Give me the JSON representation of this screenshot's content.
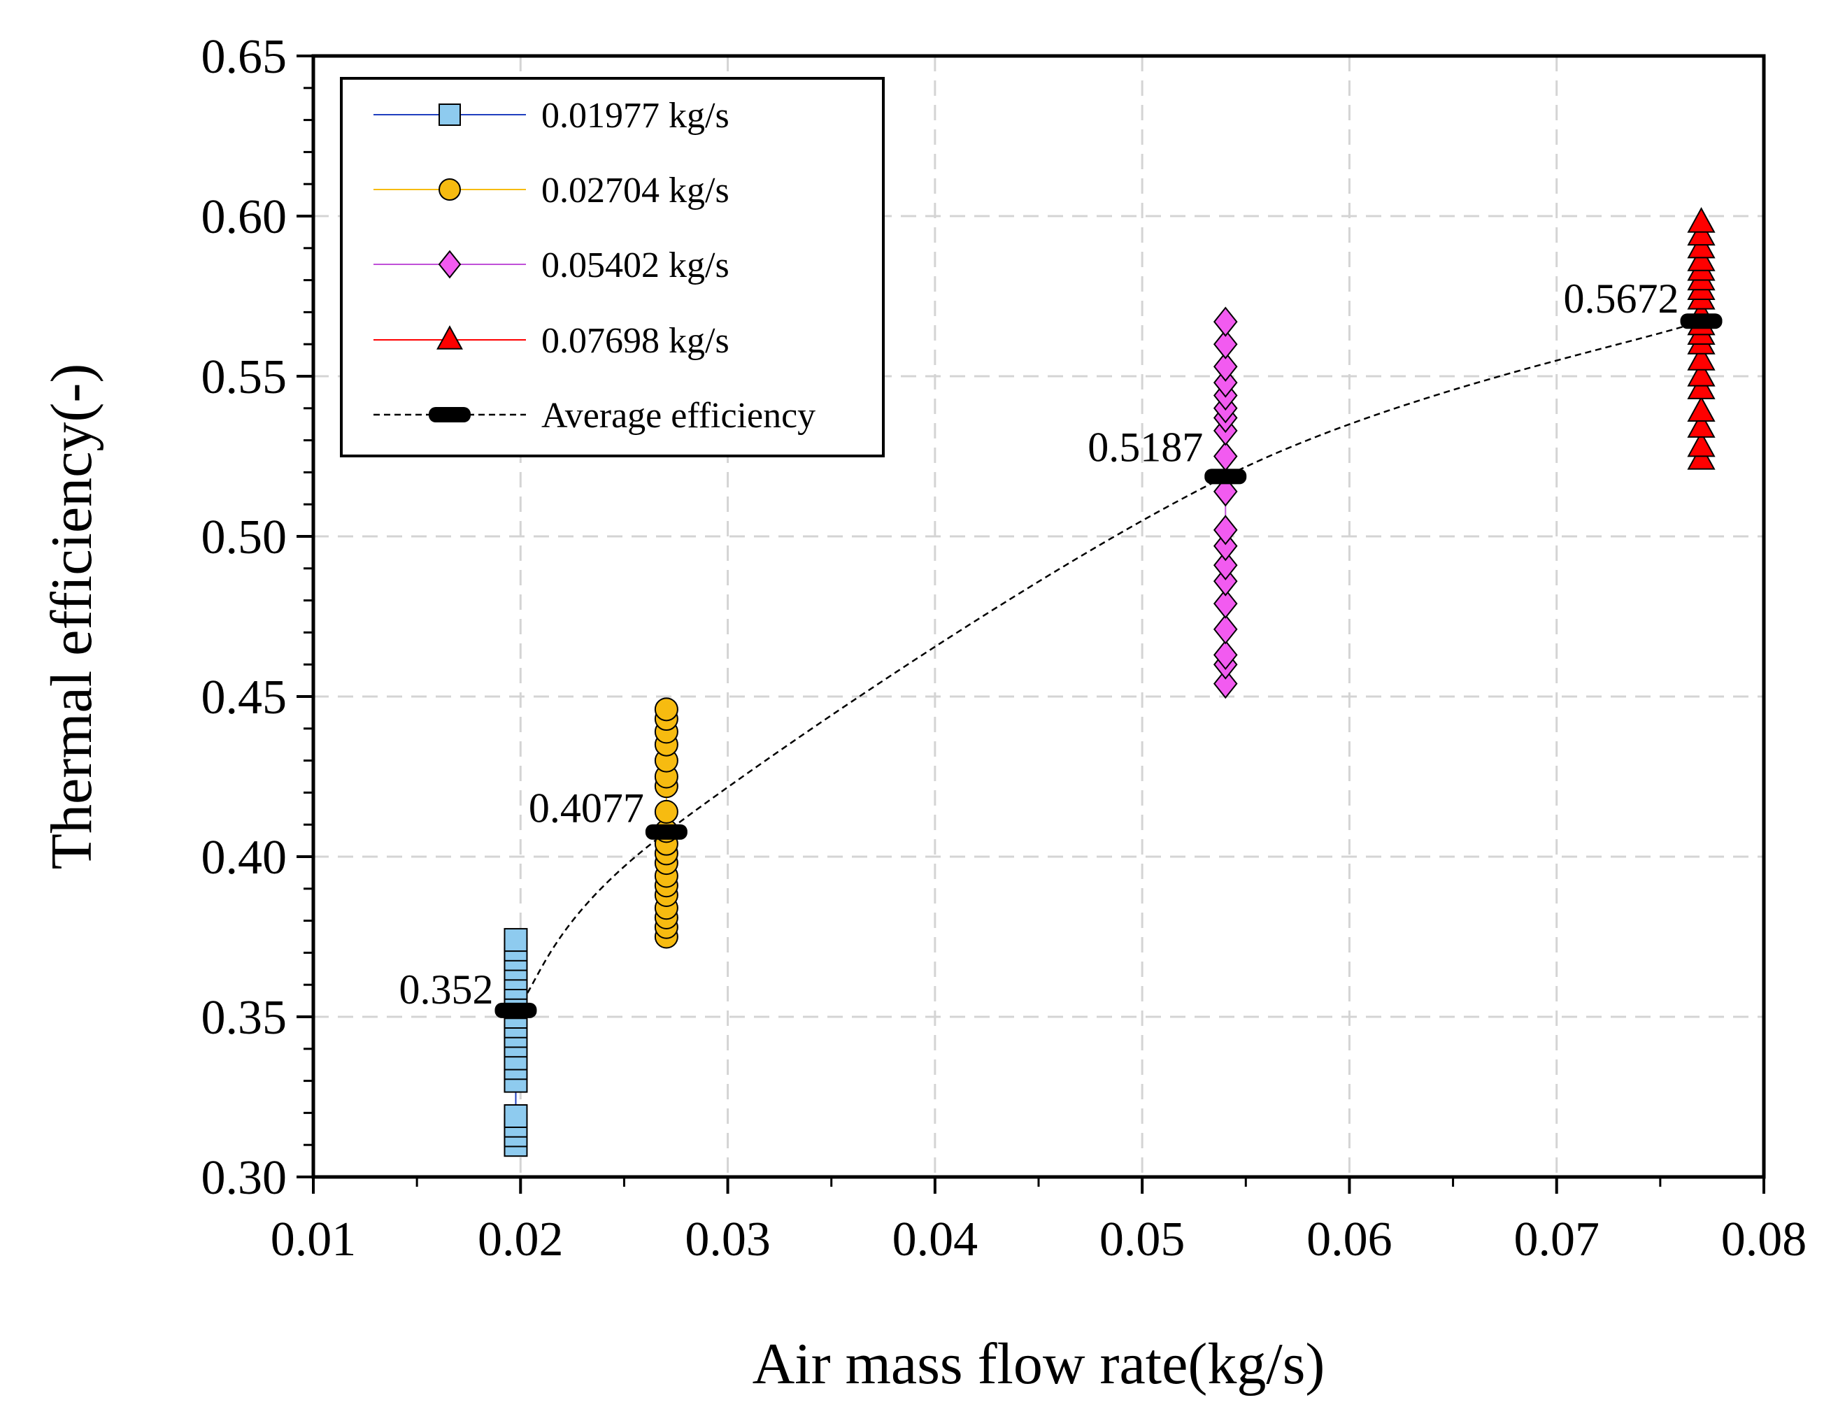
{
  "chart_data": {
    "type": "scatter",
    "title": "",
    "xlabel": "Air mass flow rate(kg/s)",
    "ylabel": "Thermal efficiency(-)",
    "xlim": [
      0.01,
      0.08
    ],
    "ylim": [
      0.3,
      0.65
    ],
    "x_ticks": [
      "0.01",
      "0.02",
      "0.03",
      "0.04",
      "0.05",
      "0.06",
      "0.07",
      "0.08"
    ],
    "y_ticks": [
      "0.30",
      "0.35",
      "0.40",
      "0.45",
      "0.50",
      "0.55",
      "0.60",
      "0.65"
    ],
    "grid": true,
    "legend_position": "top-left",
    "series": [
      {
        "name": "0.01977 kg/s",
        "marker": "square",
        "color": "#8ecbef",
        "line_color": "#1f3fbf",
        "x": 0.01977,
        "values": [
          0.31,
          0.313,
          0.316,
          0.319,
          0.33,
          0.334,
          0.337,
          0.341,
          0.344,
          0.347,
          0.35,
          0.353,
          0.356,
          0.359,
          0.362,
          0.365,
          0.368,
          0.371,
          0.374
        ]
      },
      {
        "name": "0.02704 kg/s",
        "marker": "circle",
        "color": "#f7bb10",
        "line_color": "#f7bb10",
        "x": 0.02704,
        "values": [
          0.375,
          0.378,
          0.381,
          0.384,
          0.388,
          0.391,
          0.394,
          0.398,
          0.401,
          0.404,
          0.408,
          0.414,
          0.422,
          0.425,
          0.43,
          0.435,
          0.439,
          0.443,
          0.446
        ]
      },
      {
        "name": "0.05402 kg/s",
        "marker": "diamond",
        "color": "#f25bf0",
        "line_color": "#c050d8",
        "x": 0.05402,
        "values": [
          0.454,
          0.46,
          0.463,
          0.471,
          0.479,
          0.486,
          0.491,
          0.497,
          0.502,
          0.514,
          0.525,
          0.533,
          0.537,
          0.54,
          0.544,
          0.548,
          0.553,
          0.56,
          0.567
        ]
      },
      {
        "name": "0.07698 kg/s",
        "marker": "triangle",
        "color": "#ff0000",
        "line_color": "#ff0000",
        "x": 0.07698,
        "values": [
          0.524,
          0.528,
          0.534,
          0.539,
          0.546,
          0.55,
          0.555,
          0.56,
          0.563,
          0.566,
          0.569,
          0.574,
          0.577,
          0.58,
          0.583,
          0.586,
          0.59,
          0.594,
          0.598
        ]
      }
    ],
    "average": {
      "name": "Average efficiency",
      "x": [
        0.01977,
        0.02704,
        0.05402,
        0.07698
      ],
      "y": [
        0.352,
        0.4077,
        0.5187,
        0.5672
      ],
      "labels": [
        "0.352",
        "0.4077",
        "0.5187",
        "0.5672"
      ]
    }
  }
}
